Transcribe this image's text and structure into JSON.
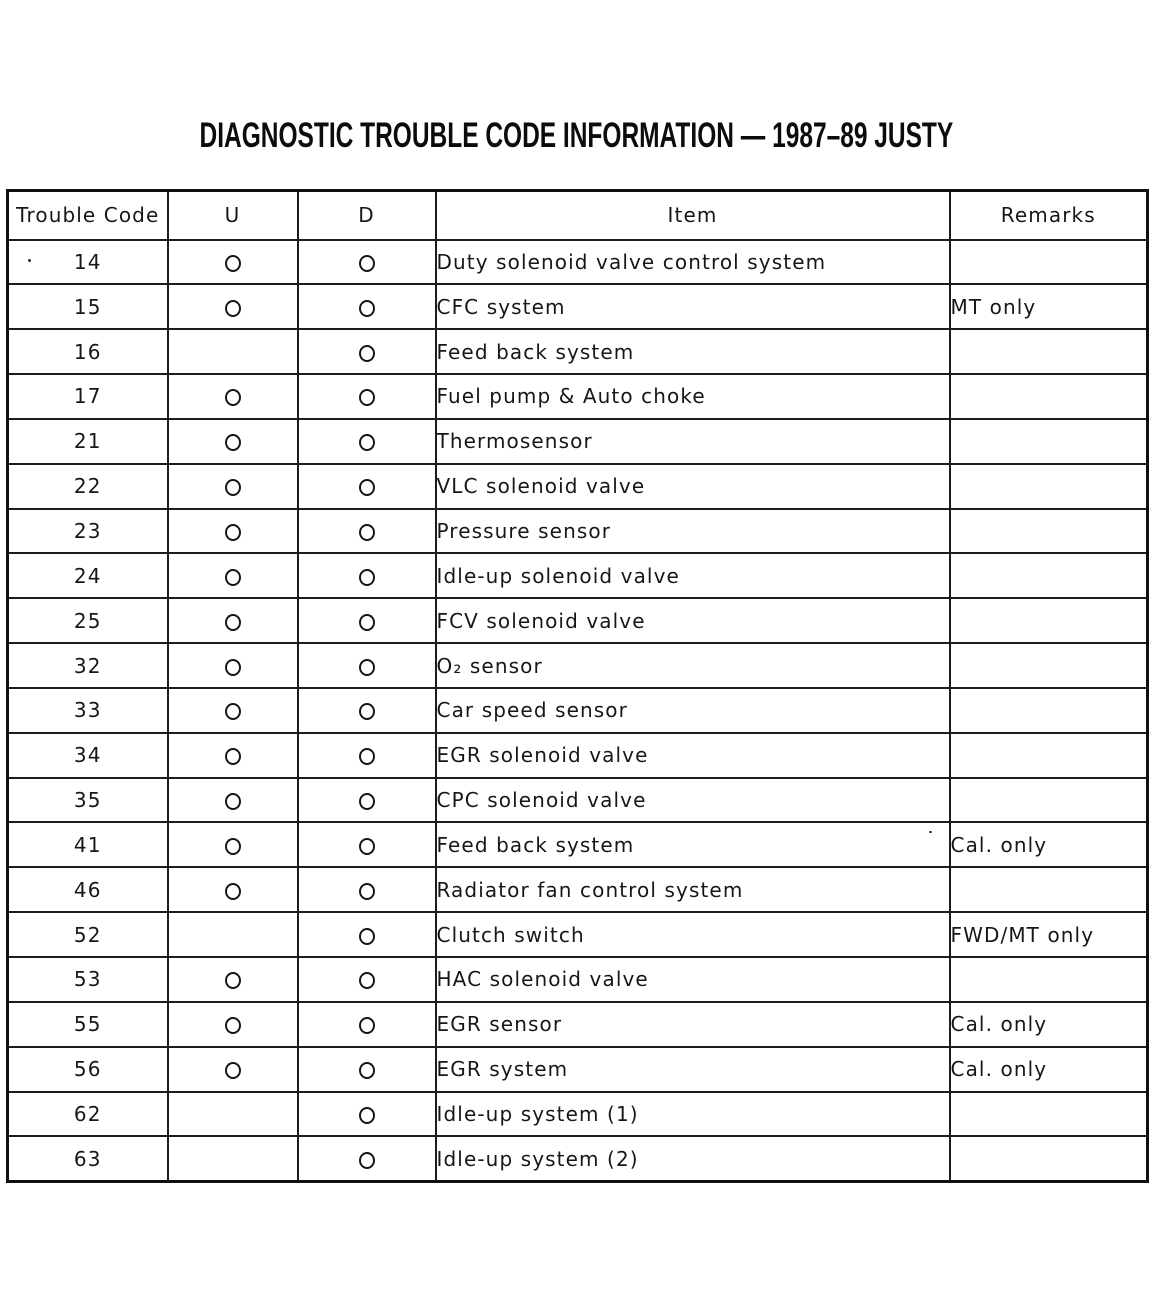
{
  "page": {
    "title": "DIAGNOSTIC TROUBLE CODE INFORMATION — 1987–89 JUSTY"
  },
  "colors": {
    "ink": "#161616",
    "paper": "#ffffff"
  },
  "icons": {
    "circle_mark": "open-circle"
  },
  "table": {
    "headers": {
      "code": "Trouble Code",
      "u": "U",
      "d": "D",
      "item": "Item",
      "remarks": "Remarks"
    },
    "rows": [
      {
        "code": "14",
        "u": true,
        "d": true,
        "item": "Duty solenoid valve control system",
        "remarks": ""
      },
      {
        "code": "15",
        "u": true,
        "d": true,
        "item": "CFC system",
        "remarks": "MT only"
      },
      {
        "code": "16",
        "u": false,
        "d": true,
        "item": "Feed back system",
        "remarks": ""
      },
      {
        "code": "17",
        "u": true,
        "d": true,
        "item": "Fuel pump & Auto choke",
        "remarks": ""
      },
      {
        "code": "21",
        "u": true,
        "d": true,
        "item": "Thermosensor",
        "remarks": ""
      },
      {
        "code": "22",
        "u": true,
        "d": true,
        "item": "VLC solenoid valve",
        "remarks": ""
      },
      {
        "code": "23",
        "u": true,
        "d": true,
        "item": "Pressure sensor",
        "remarks": ""
      },
      {
        "code": "24",
        "u": true,
        "d": true,
        "item": "Idle-up solenoid valve",
        "remarks": ""
      },
      {
        "code": "25",
        "u": true,
        "d": true,
        "item": "FCV solenoid valve",
        "remarks": ""
      },
      {
        "code": "32",
        "u": true,
        "d": true,
        "item": "O₂ sensor",
        "remarks": ""
      },
      {
        "code": "33",
        "u": true,
        "d": true,
        "item": "Car speed sensor",
        "remarks": ""
      },
      {
        "code": "34",
        "u": true,
        "d": true,
        "item": "EGR solenoid valve",
        "remarks": ""
      },
      {
        "code": "35",
        "u": true,
        "d": true,
        "item": "CPC solenoid valve",
        "remarks": ""
      },
      {
        "code": "41",
        "u": true,
        "d": true,
        "item": "Feed back system",
        "remarks": "Cal. only"
      },
      {
        "code": "46",
        "u": true,
        "d": true,
        "item": "Radiator fan control system",
        "remarks": ""
      },
      {
        "code": "52",
        "u": false,
        "d": true,
        "item": "Clutch switch",
        "remarks": "FWD/MT only"
      },
      {
        "code": "53",
        "u": true,
        "d": true,
        "item": "HAC solenoid valve",
        "remarks": ""
      },
      {
        "code": "55",
        "u": true,
        "d": true,
        "item": "EGR sensor",
        "remarks": "Cal. only"
      },
      {
        "code": "56",
        "u": true,
        "d": true,
        "item": "EGR system",
        "remarks": "Cal. only"
      },
      {
        "code": "62",
        "u": false,
        "d": true,
        "item": "Idle-up system (1)",
        "remarks": ""
      },
      {
        "code": "63",
        "u": false,
        "d": true,
        "item": "Idle-up system (2)",
        "remarks": ""
      }
    ]
  }
}
